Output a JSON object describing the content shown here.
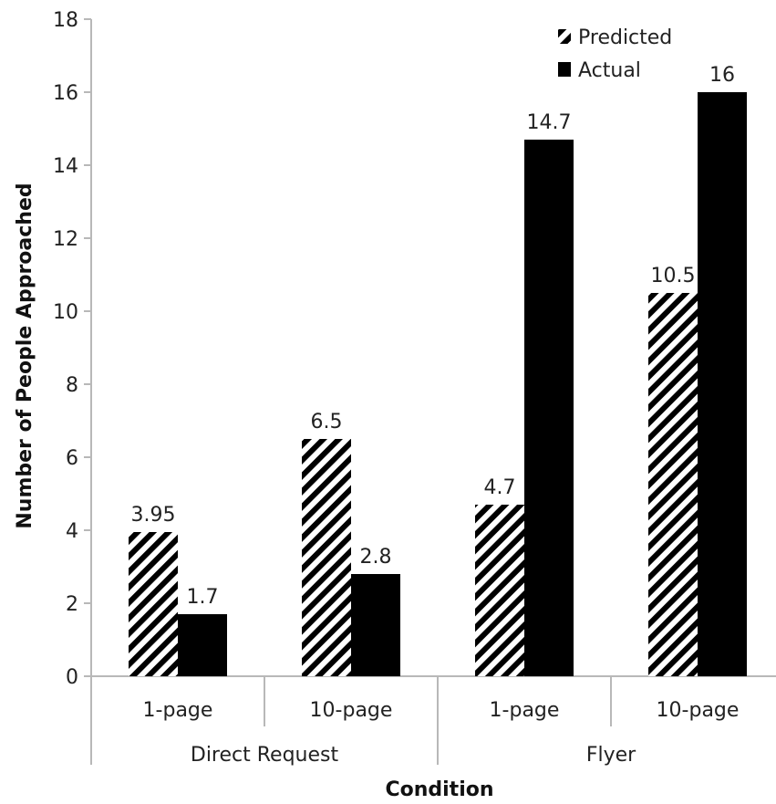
{
  "chart_data": {
    "type": "bar",
    "title": "",
    "xlabel": "Condition",
    "ylabel": "Number of People Approached",
    "ylim": [
      0,
      18
    ],
    "yticks": [
      0,
      2,
      4,
      6,
      8,
      10,
      12,
      14,
      16,
      18
    ],
    "grid": false,
    "legend_position": "top-right",
    "groups": [
      "Direct Request",
      "Flyer"
    ],
    "categories": [
      "1-page",
      "10-page",
      "1-page",
      "10-page"
    ],
    "category_group": [
      0,
      0,
      1,
      1
    ],
    "series": [
      {
        "name": "Predicted",
        "values": [
          3.95,
          6.5,
          4.7,
          10.5
        ],
        "labels": [
          "3.95",
          "6.5",
          "4.7",
          "10.5"
        ],
        "fill": "hatched",
        "color": "#000000"
      },
      {
        "name": "Actual",
        "values": [
          1.7,
          2.8,
          14.7,
          16
        ],
        "labels": [
          "1.7",
          "2.8",
          "14.7",
          "16"
        ],
        "fill": "solid",
        "color": "#000000"
      }
    ]
  }
}
